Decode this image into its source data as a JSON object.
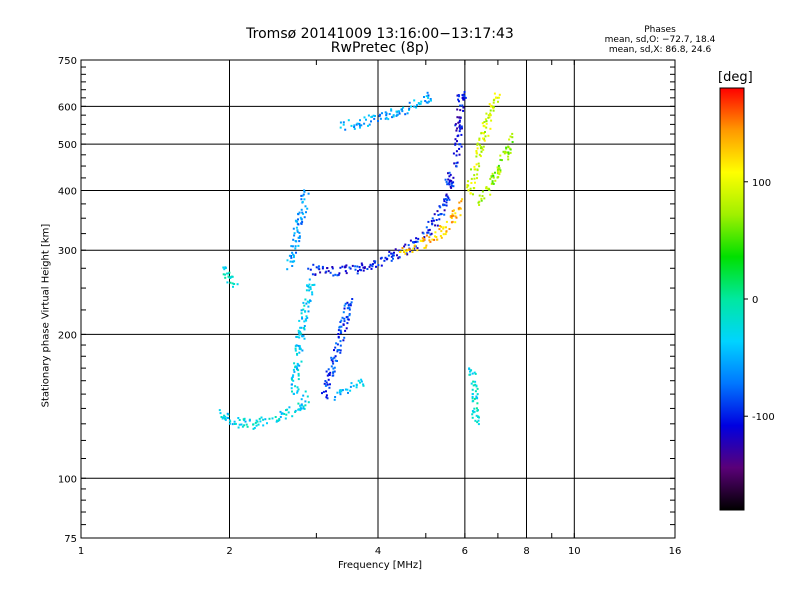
{
  "chart_data": {
    "type": "scatter",
    "title": "Tromsø 20141009 13:16:00−13:17:43",
    "subtitle": "RwPretec (8p)",
    "xlabel": "Frequency [MHz]",
    "ylabel": "Stationary phase Virtual Height [km]",
    "x_scale": "log",
    "y_scale": "log",
    "xlim": [
      1,
      16
    ],
    "ylim": [
      75,
      750
    ],
    "xticks": [
      1,
      2,
      4,
      6,
      8,
      10,
      16
    ],
    "yticks": [
      75,
      100,
      200,
      300,
      400,
      500,
      600,
      750
    ],
    "grid": true,
    "stats": {
      "title": "Phases",
      "o_line": "mean, sd,O: −72.7, 18.4",
      "x_line": "mean, sd,X:  86.8, 24.6"
    },
    "colorbar": {
      "unit": "[deg]",
      "range": [
        -180,
        180
      ],
      "ticks": [
        100,
        0,
        -100
      ],
      "colormap": [
        "#000000",
        "#5a0078",
        "#0000e0",
        "#0077ff",
        "#00d4ff",
        "#00e8a0",
        "#00e000",
        "#a0f000",
        "#ffff00",
        "#ff9900",
        "#ff0000"
      ]
    },
    "series": [
      {
        "traces": [
          {
            "x": [
              1.9,
              2.0,
              2.2,
              2.4,
              2.6,
              2.8,
              2.85
            ],
            "y": [
              140,
              132,
              130,
              133,
              137,
              142,
              150
            ],
            "phase": -30
          },
          {
            "x": [
              1.95,
              1.97,
              2.0,
              2.05
            ],
            "y": [
              275,
              268,
              262,
              258
            ],
            "phase": -20
          },
          {
            "x": [
              2.7,
              2.72,
              2.75,
              2.8,
              2.85,
              2.9,
              2.92
            ],
            "y": [
              150,
              170,
              190,
              210,
              230,
              250,
              260
            ],
            "phase": -35
          },
          {
            "x": [
              2.65,
              2.7,
              2.75,
              2.8,
              2.85
            ],
            "y": [
              280,
              310,
              340,
              370,
              395
            ],
            "phase": -60
          },
          {
            "x": [
              2.9,
              3.1,
              3.3,
              3.6,
              4.0,
              4.5,
              5.0,
              5.4,
              5.7
            ],
            "y": [
              275,
              272,
              272,
              276,
              285,
              300,
              325,
              370,
              460
            ],
            "phase": -100
          },
          {
            "x": [
              5.75,
              5.8,
              5.85,
              5.9
            ],
            "y": [
              480,
              540,
              590,
              650
            ],
            "phase": -110
          },
          {
            "x": [
              3.4,
              3.6,
              3.9,
              4.3,
              4.8,
              5.1
            ],
            "y": [
              550,
              555,
              565,
              585,
              610,
              640
            ],
            "phase": -55
          },
          {
            "x": [
              3.1,
              3.2,
              3.3,
              3.4,
              3.5
            ],
            "y": [
              150,
              170,
              190,
              215,
              240
            ],
            "phase": -90
          },
          {
            "x": [
              3.3,
              3.5,
              3.7
            ],
            "y": [
              150,
              155,
              160
            ],
            "phase": -40
          },
          {
            "x": [
              4.4,
              4.8,
              5.2,
              5.6,
              5.9
            ],
            "y": [
              300,
              308,
              320,
              345,
              380
            ],
            "phase": 130
          },
          {
            "x": [
              6.1,
              6.3,
              6.5,
              6.7,
              7.0
            ],
            "y": [
              400,
              460,
              520,
              580,
              640
            ],
            "phase": 90
          },
          {
            "x": [
              6.4,
              6.8,
              7.2,
              7.5
            ],
            "y": [
              380,
              420,
              470,
              520
            ],
            "phase": 70
          },
          {
            "x": [
              6.2,
              6.25,
              6.3
            ],
            "y": [
              170,
              150,
              130
            ],
            "phase": -20
          }
        ]
      }
    ]
  }
}
